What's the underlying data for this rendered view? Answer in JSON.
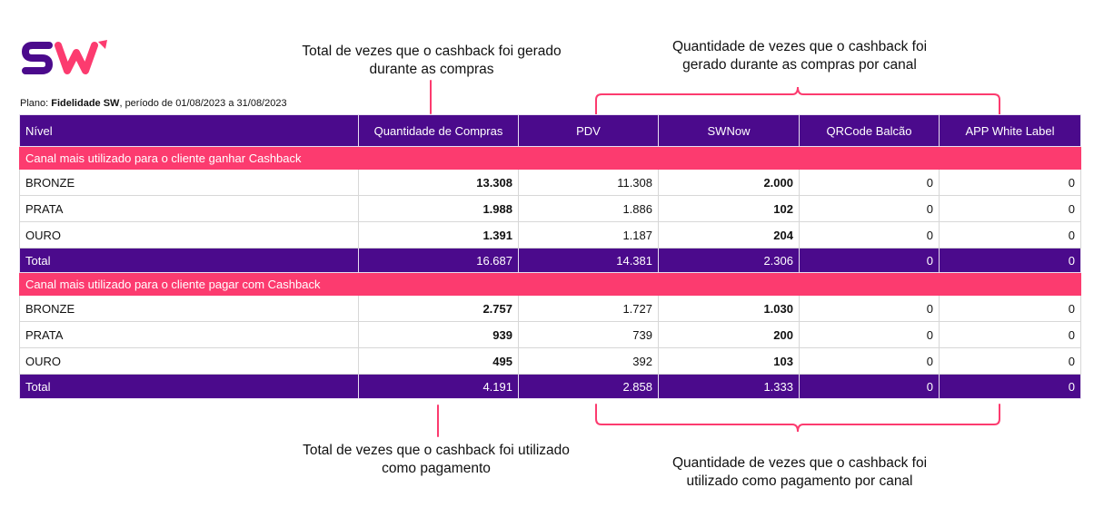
{
  "brand": {
    "logo_text": "SW",
    "primary_color": "#4b0a8c",
    "accent_color": "#fc3b6f"
  },
  "annotations": {
    "total_gerado": [
      "Total de vezes que o cashback foi gerado",
      "durante as compras"
    ],
    "canal_gerado": [
      "Quantidade de vezes que o cashback foi",
      "gerado durante as compras por canal"
    ],
    "total_utilizado": [
      "Total de vezes que o cashback foi utilizado",
      "como pagamento"
    ],
    "canal_utilizado": [
      "Quantidade de vezes que o cashback foi",
      "utilizado como pagamento por canal"
    ]
  },
  "plano": {
    "label": "Plano:",
    "name": "Fidelidade SW",
    "periodo_text": ", período de 01/08/2023",
    "a": "a",
    "end": "31/08/2023"
  },
  "table": {
    "headers": [
      "Nível",
      "Quantidade de Compras",
      "PDV",
      "SWNow",
      "QRCode Balcão",
      "APP White Label"
    ],
    "sections": [
      {
        "title": "Canal mais utilizado para o cliente ganhar Cashback",
        "rows": [
          [
            "BRONZE",
            "13.308",
            "11.308",
            "2.000",
            "0",
            "0"
          ],
          [
            "PRATA",
            "1.988",
            "1.886",
            "102",
            "0",
            "0"
          ],
          [
            "OURO",
            "1.391",
            "1.187",
            "204",
            "0",
            "0"
          ]
        ],
        "total": [
          "Total",
          "16.687",
          "14.381",
          "2.306",
          "0",
          "0"
        ]
      },
      {
        "title": "Canal mais utilizado para o cliente pagar com Cashback",
        "rows": [
          [
            "BRONZE",
            "2.757",
            "1.727",
            "1.030",
            "0",
            "0"
          ],
          [
            "PRATA",
            "939",
            "739",
            "200",
            "0",
            "0"
          ],
          [
            "OURO",
            "495",
            "392",
            "103",
            "0",
            "0"
          ]
        ],
        "total": [
          "Total",
          "4.191",
          "2.858",
          "1.333",
          "0",
          "0"
        ]
      }
    ]
  }
}
